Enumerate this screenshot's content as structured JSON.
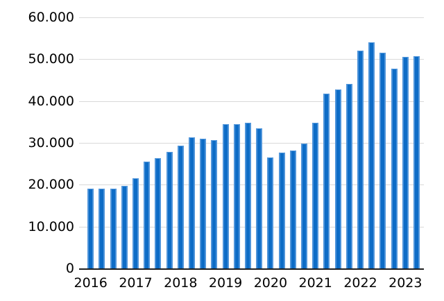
{
  "chart_data": {
    "type": "bar",
    "title": "",
    "xlabel": "",
    "ylabel": "",
    "ylim": [
      0,
      60000
    ],
    "grid": true,
    "legend": false,
    "bar_color": "#0d6cc6",
    "bar_edge_color": "#4e94da",
    "categories": [
      "2016 Q1",
      "2016 Q2",
      "2016 Q3",
      "2016 Q4",
      "2017 Q1",
      "2017 Q2",
      "2017 Q3",
      "2017 Q4",
      "2018 Q1",
      "2018 Q2",
      "2018 Q3",
      "2018 Q4",
      "2019 Q1",
      "2019 Q2",
      "2019 Q3",
      "2019 Q4",
      "2020 Q1",
      "2020 Q2",
      "2020 Q3",
      "2020 Q4",
      "2021 Q1",
      "2021 Q2",
      "2021 Q3",
      "2021 Q4",
      "2022 Q1",
      "2022 Q2",
      "2022 Q3",
      "2022 Q4",
      "2023 Q1",
      "2023 Q2"
    ],
    "values": [
      19100,
      19000,
      19100,
      19800,
      21600,
      25500,
      26400,
      27800,
      29300,
      31300,
      31000,
      30700,
      34500,
      34500,
      34800,
      33500,
      26600,
      27700,
      28100,
      29800,
      34800,
      41700,
      42800,
      44100,
      52100,
      54000,
      51600,
      47800,
      50600,
      50800
    ],
    "x_tick_labels": [
      "2016",
      "2017",
      "2018",
      "2019",
      "2020",
      "2021",
      "2022",
      "2023"
    ],
    "y_tick_labels": [
      "0",
      "10.000",
      "20.000",
      "30.000",
      "40.000",
      "50.000",
      "60.000"
    ],
    "y_tick_values": [
      0,
      10000,
      20000,
      30000,
      40000,
      50000,
      60000
    ]
  },
  "colors": {
    "background": "#ffffff",
    "gridline": "#d9d9d9",
    "axis_line": "#1f1f1f",
    "label_text": "#000000"
  }
}
